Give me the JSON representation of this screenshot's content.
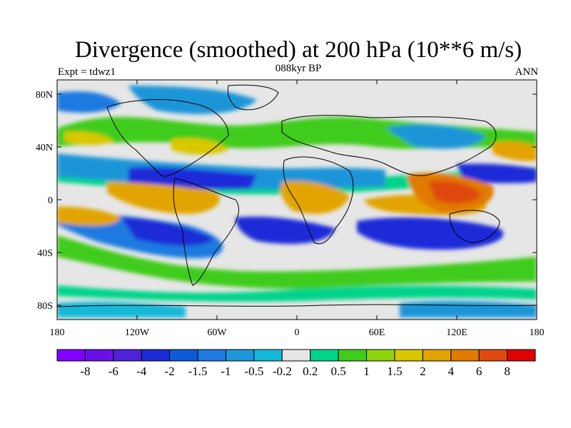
{
  "header": {
    "title": "Divergence (smoothed) at 200 hPa (10**6 m/s)",
    "left_label": "Expt = tdwz1",
    "center_label": "088kyr BP",
    "right_label": "ANN"
  },
  "map": {
    "lat_labels": [
      "80N",
      "40N",
      "0",
      "40S",
      "80S"
    ],
    "lon_labels": [
      "180",
      "120W",
      "60W",
      "0",
      "60E",
      "120E",
      "180"
    ]
  },
  "colorbar": {
    "colors": [
      "#8000ff",
      "#6a10e6",
      "#4e22d8",
      "#1a2ad8",
      "#0d5ad8",
      "#1f7ae0",
      "#1e95d8",
      "#14b8d8",
      "#e6e6e6",
      "#00d48a",
      "#3fcc1a",
      "#90d40c",
      "#d8c800",
      "#e2a400",
      "#e07a00",
      "#e04a10",
      "#e00000"
    ],
    "labels": [
      "-8",
      "-6",
      "-4",
      "-2",
      "-1.5",
      "-1",
      "-0.5",
      "-0.2",
      "0.2",
      "0.5",
      "1",
      "1.5",
      "2",
      "4",
      "6",
      "8"
    ]
  }
}
